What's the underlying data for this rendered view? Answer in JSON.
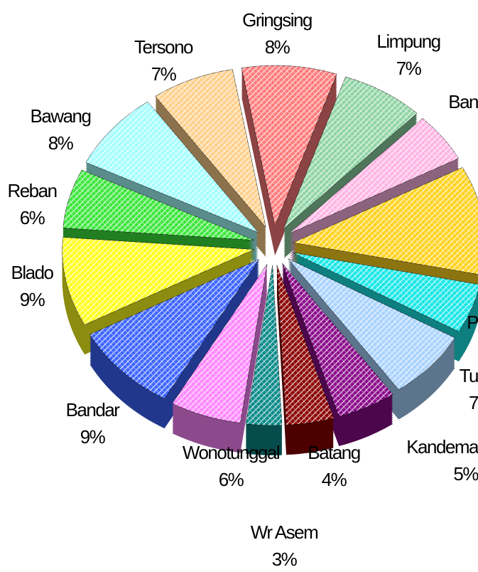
{
  "chart_data": {
    "type": "pie",
    "categories": [
      "Gringsing",
      "Limpung",
      "Ban",
      null,
      "P",
      "Tu",
      "Kandema",
      "Batang",
      "Wr Asem",
      "Wonotunggal",
      "Bandar",
      "Blado",
      "Reban",
      "Bawang",
      "Tersono"
    ],
    "values": [
      8,
      7,
      5,
      11,
      5,
      7,
      5,
      4,
      3,
      6,
      9,
      9,
      6,
      8,
      7
    ],
    "value_labels": [
      "8%",
      "7%",
      null,
      null,
      null,
      "7",
      "5%",
      "4%",
      "3%",
      "6%",
      "9%",
      "9%",
      "6%",
      "8%",
      "7%"
    ],
    "colors": [
      "#ff7a7a",
      "#8fd4a4",
      "#ffb4e4",
      "#ffd21e",
      "#19e6e6",
      "#a8d2ff",
      "#8a0a8a",
      "#8b0000",
      "#0a8a8a",
      "#ff86ff",
      "#3c64ff",
      "#ffff1e",
      "#3ce63c",
      "#a4ffff",
      "#ffcf8a"
    ]
  }
}
